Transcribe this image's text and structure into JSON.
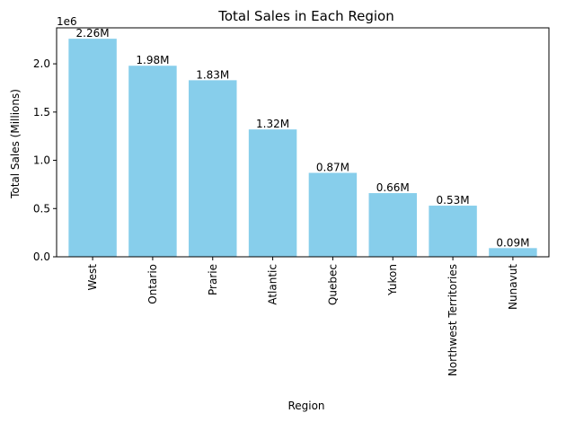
{
  "chart_data": {
    "type": "bar",
    "title": "Total Sales in Each Region",
    "xlabel": "Region",
    "ylabel": "Total Sales (Millions)",
    "y_offset_text": "1e6",
    "categories": [
      "West",
      "Ontario",
      "Prarie",
      "Atlantic",
      "Quebec",
      "Yukon",
      "Northwest Territories",
      "Nunavut"
    ],
    "values": [
      2260000,
      1980000,
      1830000,
      1320000,
      870000,
      660000,
      530000,
      90000
    ],
    "data_labels": [
      "2.26M",
      "1.98M",
      "1.83M",
      "1.32M",
      "0.87M",
      "0.66M",
      "0.53M",
      "0.09M"
    ],
    "yticks": [
      0,
      500000,
      1000000,
      1500000,
      2000000
    ],
    "ytick_labels": [
      "0.0",
      "0.5",
      "1.0",
      "1.5",
      "2.0"
    ],
    "ylim": [
      0,
      2373000
    ],
    "bar_color": "#87ceeb",
    "grid": false,
    "xtick_rotation": 90
  }
}
